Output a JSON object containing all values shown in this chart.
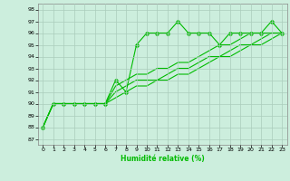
{
  "xlabel": "Humidité relative (%)",
  "line_color": "#00bb00",
  "bg_color": "#cceedd",
  "grid_color": "#aaccbb",
  "xlim": [
    -0.5,
    23.5
  ],
  "ylim": [
    86.5,
    98.5
  ],
  "yticks": [
    87,
    88,
    89,
    90,
    91,
    92,
    93,
    94,
    95,
    96,
    97,
    98
  ],
  "xticks": [
    0,
    1,
    2,
    3,
    4,
    5,
    6,
    7,
    8,
    9,
    10,
    11,
    12,
    13,
    14,
    15,
    16,
    17,
    18,
    19,
    20,
    21,
    22,
    23
  ],
  "series": [
    {
      "x": [
        0,
        1,
        2,
        3,
        4,
        5,
        6,
        7,
        8,
        9,
        10,
        11,
        12,
        13,
        14,
        15,
        16,
        17,
        18,
        19,
        20,
        21,
        22,
        23
      ],
      "y": [
        88,
        90,
        90,
        90,
        90,
        90,
        90,
        92,
        91,
        95,
        96,
        96,
        96,
        97,
        96,
        96,
        96,
        95,
        96,
        96,
        96,
        96,
        97,
        96
      ],
      "marker": "D",
      "markersize": 2.5,
      "linewidth": 0.8
    },
    {
      "x": [
        0,
        1,
        2,
        3,
        4,
        5,
        6,
        7,
        8,
        9,
        10,
        11,
        12,
        13,
        14,
        15,
        16,
        17,
        18,
        19,
        20,
        21,
        22,
        23
      ],
      "y": [
        88,
        90,
        90,
        90,
        90,
        90,
        90,
        91.5,
        92,
        92.5,
        92.5,
        93,
        93,
        93.5,
        93.5,
        94,
        94.5,
        95,
        95,
        95.5,
        96,
        96,
        96,
        96
      ],
      "marker": null,
      "markersize": 0,
      "linewidth": 0.8
    },
    {
      "x": [
        0,
        1,
        2,
        3,
        4,
        5,
        6,
        7,
        8,
        9,
        10,
        11,
        12,
        13,
        14,
        15,
        16,
        17,
        18,
        19,
        20,
        21,
        22,
        23
      ],
      "y": [
        88,
        90,
        90,
        90,
        90,
        90,
        90,
        91,
        91.5,
        92,
        92,
        92,
        92.5,
        93,
        93,
        93.5,
        94,
        94,
        94.5,
        95,
        95,
        95.5,
        96,
        96
      ],
      "marker": null,
      "markersize": 0,
      "linewidth": 0.8
    },
    {
      "x": [
        0,
        1,
        2,
        3,
        4,
        5,
        6,
        7,
        8,
        9,
        10,
        11,
        12,
        13,
        14,
        15,
        16,
        17,
        18,
        19,
        20,
        21,
        22,
        23
      ],
      "y": [
        88,
        90,
        90,
        90,
        90,
        90,
        90,
        90.5,
        91,
        91.5,
        91.5,
        92,
        92,
        92.5,
        92.5,
        93,
        93.5,
        94,
        94,
        94.5,
        95,
        95,
        95.5,
        96
      ],
      "marker": null,
      "markersize": 0,
      "linewidth": 0.8
    }
  ]
}
